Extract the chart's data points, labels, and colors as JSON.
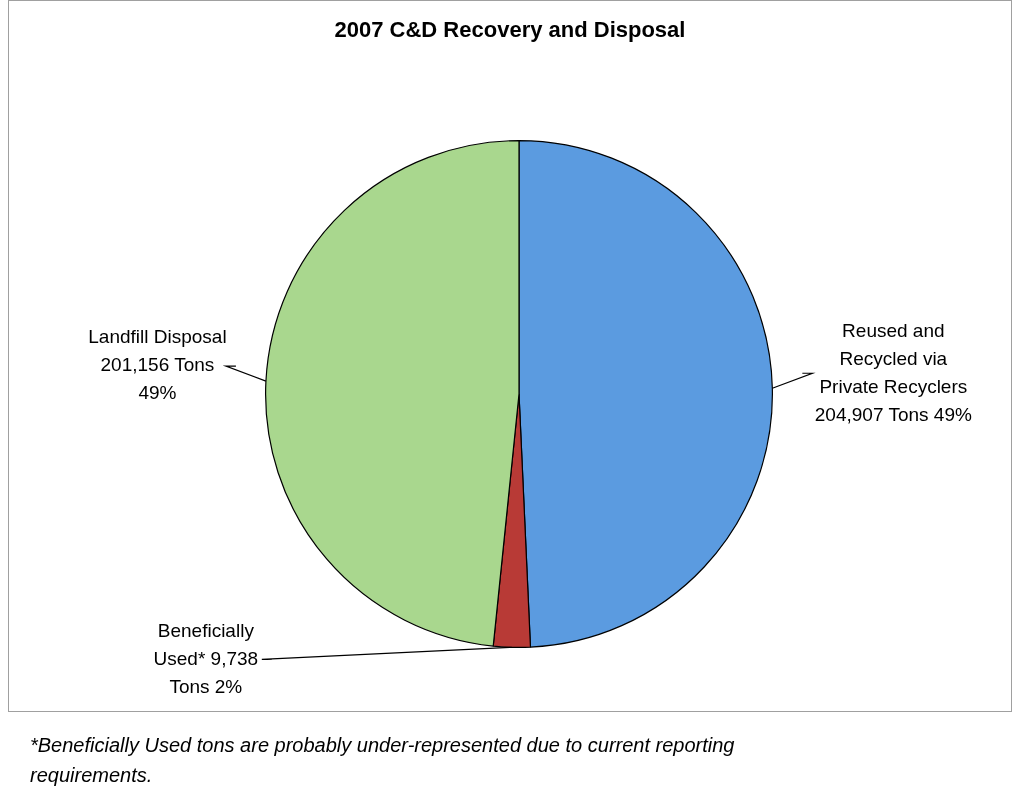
{
  "chart_data": {
    "type": "pie",
    "title": "2007 C&D Recovery and Disposal",
    "categories": [
      "Reused and Recycled via Private Recyclers",
      "Beneficially Used*",
      "Landfill Disposal"
    ],
    "values": [
      204907,
      9738,
      201156
    ],
    "colors": [
      "#5b9be0",
      "#b83a36",
      "#a9d78e"
    ],
    "value_labels": [
      "204,907 Tons 49%",
      "9,738 Tons 2%",
      "201,156 Tons 49%"
    ],
    "legend": false,
    "annotations": [
      "*Beneficially Used tons are probably under-represented due to current reporting requirements."
    ]
  }
}
